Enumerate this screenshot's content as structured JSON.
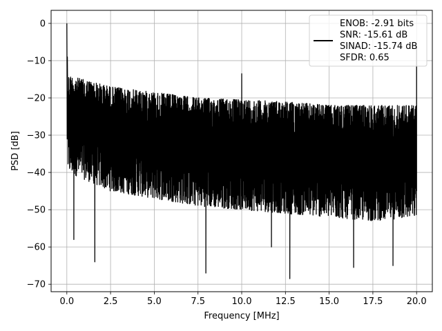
{
  "chart_data": {
    "type": "line",
    "title": "",
    "xlabel": "Frequency [MHz]",
    "ylabel": "PSD [dB]",
    "xlim": [
      -0.9,
      20.9
    ],
    "ylim": [
      -72,
      3.5
    ],
    "grid": true,
    "legend_position": "top-right",
    "x_ticks": [
      0.0,
      2.5,
      5.0,
      7.5,
      10.0,
      12.5,
      15.0,
      17.5,
      20.0
    ],
    "x_tick_labels": [
      "0.0",
      "2.5",
      "5.0",
      "7.5",
      "10.0",
      "12.5",
      "15.0",
      "17.5",
      "20.0"
    ],
    "y_ticks": [
      0,
      -10,
      -20,
      -30,
      -40,
      -50,
      -60,
      -70
    ],
    "y_tick_labels": [
      "0",
      "−10",
      "−20",
      "−30",
      "−40",
      "−50",
      "−60",
      "−70"
    ],
    "series": [
      {
        "legend_lines": [
          "ENOB: -2.91 bits",
          "SNR: -15.61 dB",
          "SINAD: -15.74 dB",
          "SFDR: 0.65"
        ],
        "color": "#000000",
        "peaks": [
          {
            "x": 0.0,
            "y": 0
          },
          {
            "x": 10.0,
            "y": -13.5
          },
          {
            "x": 20.0,
            "y": -6
          }
        ],
        "deep_dips": [
          {
            "x": 0.4,
            "y": -58
          },
          {
            "x": 1.6,
            "y": -64
          },
          {
            "x": 7.95,
            "y": -67
          },
          {
            "x": 11.7,
            "y": -60
          },
          {
            "x": 12.75,
            "y": -68.5
          },
          {
            "x": 16.4,
            "y": -65.5
          },
          {
            "x": 18.65,
            "y": -65
          }
        ],
        "upper_envelope": [
          {
            "x": 0.1,
            "y": -14
          },
          {
            "x": 2.5,
            "y": -17
          },
          {
            "x": 5.0,
            "y": -18.5
          },
          {
            "x": 7.5,
            "y": -20
          },
          {
            "x": 10.0,
            "y": -20.5
          },
          {
            "x": 12.5,
            "y": -21
          },
          {
            "x": 15.0,
            "y": -22
          },
          {
            "x": 17.5,
            "y": -22
          },
          {
            "x": 20.0,
            "y": -22
          }
        ],
        "lower_envelope": [
          {
            "x": 0.1,
            "y": -40
          },
          {
            "x": 2.5,
            "y": -45
          },
          {
            "x": 5.0,
            "y": -47
          },
          {
            "x": 7.5,
            "y": -49
          },
          {
            "x": 10.0,
            "y": -50
          },
          {
            "x": 12.5,
            "y": -51
          },
          {
            "x": 15.0,
            "y": -52
          },
          {
            "x": 17.5,
            "y": -53
          },
          {
            "x": 20.0,
            "y": -52
          }
        ]
      }
    ]
  }
}
